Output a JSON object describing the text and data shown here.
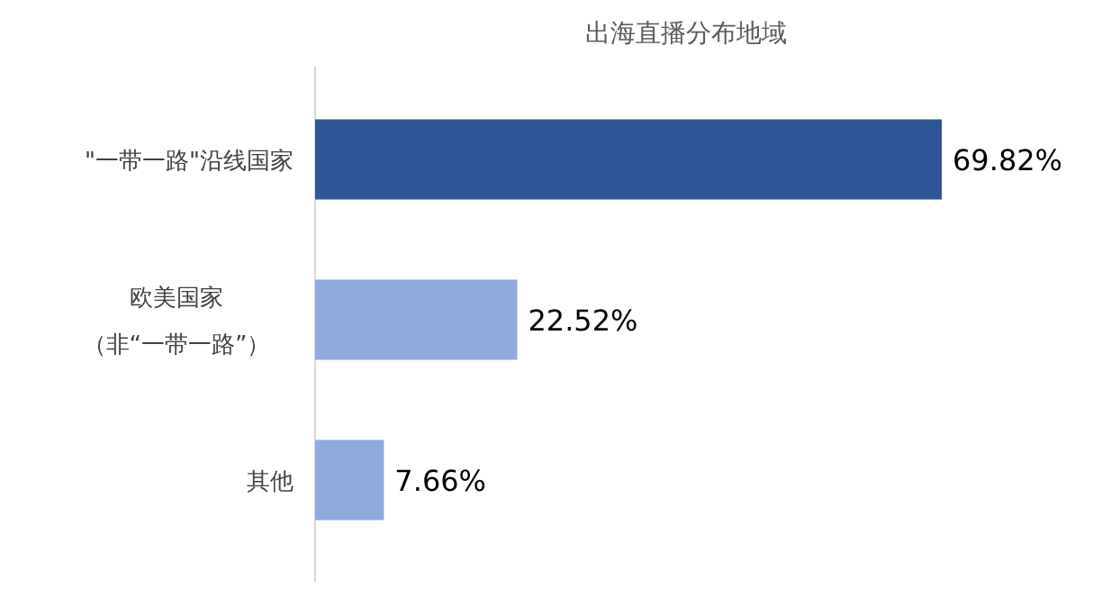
{
  "chart_data": {
    "type": "bar",
    "orientation": "horizontal",
    "title": "出海直播分布地域",
    "categories": [
      "\"一带一路\"沿线国家",
      "欧美国家（非“一带一路”）",
      "其他"
    ],
    "values": [
      69.82,
      22.52,
      7.66
    ],
    "colors": [
      "#2f5597",
      "#8faadc",
      "#8faadc"
    ],
    "value_labels": [
      "69.82%",
      "22.52%",
      "7.66%"
    ]
  }
}
